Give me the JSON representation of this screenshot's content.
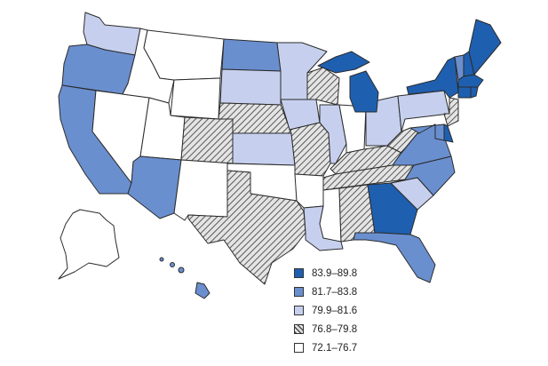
{
  "colors": {
    "dark": "#1f5fb0",
    "medium": "#6a8fcf",
    "light": "#c6d0ee",
    "hatched": "#cfcfcf",
    "none": "#ffffff",
    "stroke": "#2b2b2b"
  },
  "legend": [
    {
      "range": "83.9–89.8",
      "class": "dark"
    },
    {
      "range": "81.7–83.8",
      "class": "medium"
    },
    {
      "range": "79.9–81.6",
      "class": "light"
    },
    {
      "range": "76.8–79.8",
      "class": "hatched"
    },
    {
      "range": "72.1–76.7",
      "class": "none"
    }
  ],
  "states": {
    "WA": "light",
    "OR": "medium",
    "CA": "medium",
    "NV": "none",
    "ID": "none",
    "MT": "none",
    "WY": "none",
    "UT": "none",
    "AZ": "medium",
    "CO": "hatched",
    "NM": "none",
    "ND": "medium",
    "SD": "light",
    "NE": "hatched",
    "KS": "light",
    "OK": "none",
    "TX": "hatched",
    "MN": "light",
    "IA": "light",
    "MO": "hatched",
    "AR": "none",
    "LA": "light",
    "WI": "hatched",
    "IL": "light",
    "IN": "none",
    "OH": "light",
    "KY": "hatched",
    "TN": "hatched",
    "MS": "none",
    "AL": "hatched",
    "MI": "dark",
    "GA": "dark",
    "FL": "medium",
    "SC": "light",
    "NC": "medium",
    "VA": "medium",
    "WV": "hatched",
    "PA": "light",
    "NY": "dark",
    "VT": "medium",
    "NH": "dark",
    "ME": "dark",
    "MA": "dark",
    "CT": "dark",
    "RI": "dark",
    "NJ": "hatched",
    "DE": "dark",
    "MD": "medium",
    "AK": "none",
    "HI": "medium"
  }
}
